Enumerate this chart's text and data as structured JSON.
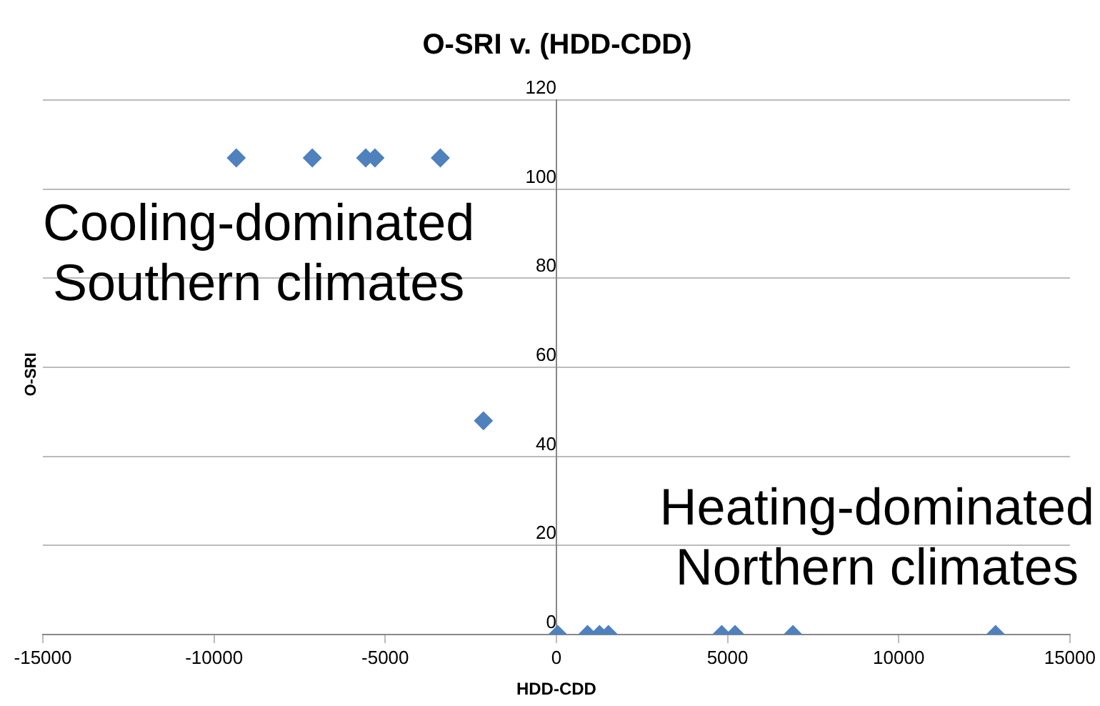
{
  "chart_data": {
    "type": "scatter",
    "title": "O-SRI v. (HDD-CDD)",
    "xlabel": "HDD-CDD",
    "ylabel": "O-SRI",
    "annotations": [
      "Cooling-dominated\nSouthern climates",
      "Heating-dominated\nNorthern climates"
    ],
    "series": [
      {
        "color": "#4f81bd",
        "x": [
          -9350,
          -7130,
          -5570,
          -5300,
          -3390,
          -2130,
          40,
          910,
          1260,
          1520,
          4830,
          5220,
          6910,
          12830
        ],
        "values": [
          107,
          107,
          107,
          107,
          107,
          48,
          0,
          0,
          0,
          0,
          0,
          0,
          0,
          0
        ]
      }
    ],
    "xlim": [
      -15000,
      15000
    ],
    "xticks": [
      -15000,
      -10000,
      -5000,
      0,
      5000,
      10000,
      15000
    ],
    "ylim": [
      0,
      120
    ],
    "yticks": [
      0,
      20,
      40,
      60,
      80,
      100,
      120
    ],
    "grid": "y",
    "marker": "diamond",
    "legend": false
  }
}
